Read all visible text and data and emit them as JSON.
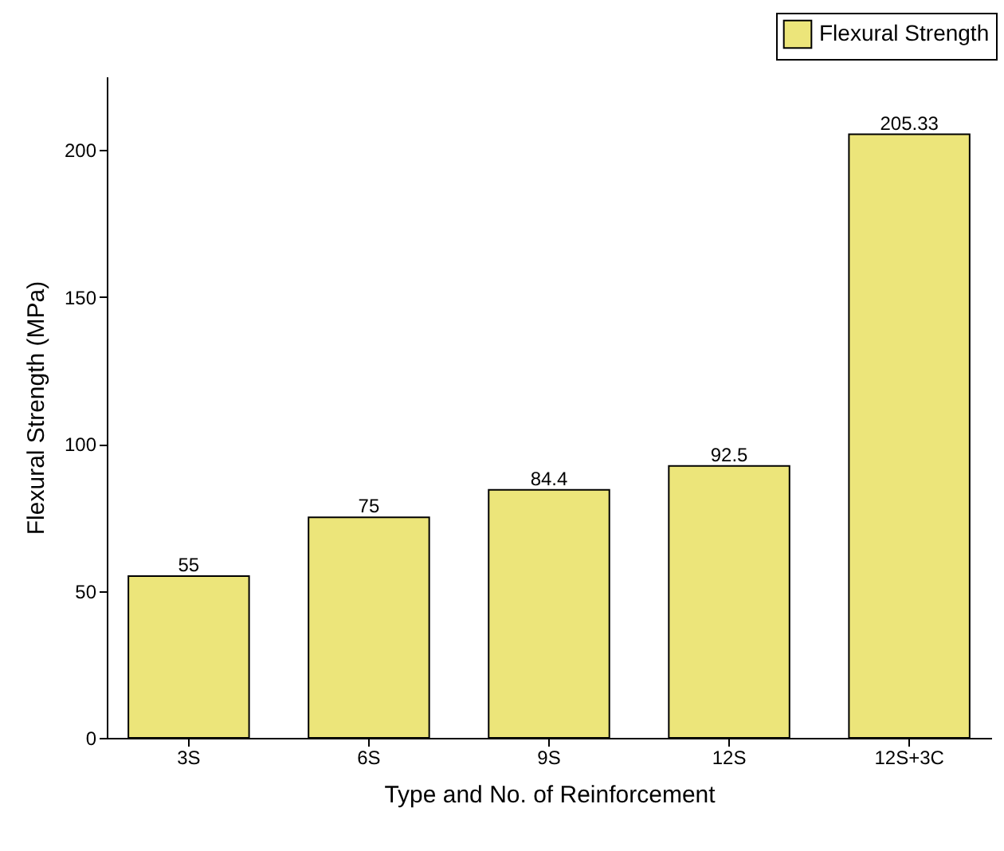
{
  "chart_data": {
    "type": "bar",
    "xlabel": "Type and No. of Reinforcement",
    "ylabel": "Flexural Strength (MPa)",
    "categories": [
      "3S",
      "6S",
      "9S",
      "12S",
      "12S+3C"
    ],
    "series": [
      {
        "name": "Flexural Strength",
        "color": "#ece57a",
        "values": [
          55,
          75,
          84.4,
          92.5,
          205.33
        ]
      }
    ],
    "ylim": [
      0,
      225
    ],
    "yticks": [
      0,
      50,
      100,
      150,
      200
    ],
    "grid": false,
    "legend": "top right",
    "data_labels": true
  }
}
